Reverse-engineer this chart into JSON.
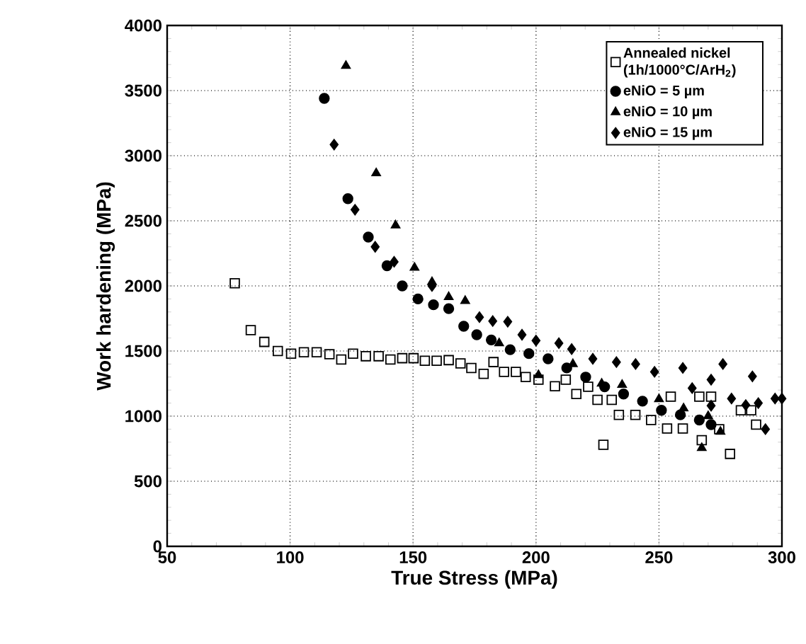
{
  "chart_data": {
    "type": "scatter",
    "xlabel": "True Stress (MPa)",
    "ylabel": "Work hardening (MPa)",
    "xlim": [
      50,
      300
    ],
    "xticks": [
      50,
      100,
      150,
      200,
      250,
      300
    ],
    "ylim": [
      0,
      4000
    ],
    "yticks": [
      0,
      500,
      1000,
      1500,
      2000,
      2500,
      3000,
      3500,
      4000
    ],
    "grid": true,
    "legend": "top right",
    "series": [
      {
        "name": "Annealed nickel (1h/1000°C/ArH$_{2}$)",
        "color": "#000000",
        "marker": "square",
        "x": [
          77.5,
          84,
          89.5,
          95,
          100.4,
          105.6,
          110.8,
          116,
          120.8,
          125.6,
          130.8,
          136,
          140.8,
          145.6,
          150.2,
          154.8,
          159.6,
          164.5,
          169.3,
          173.7,
          178.7,
          182.7,
          187,
          191.8,
          195.8,
          201,
          207.7,
          212.1,
          216.4,
          221.2,
          225,
          227.4,
          230.8,
          233.7,
          240.4,
          246.8,
          253.3,
          254.8,
          259.7,
          266.4,
          267.4,
          271.2,
          274.5,
          278.9,
          283.3,
          287.5,
          289.5
        ],
        "values": [
          2020,
          1660,
          1570,
          1500,
          1480,
          1490,
          1490,
          1475,
          1435,
          1480,
          1460,
          1460,
          1435,
          1445,
          1445,
          1425,
          1425,
          1430,
          1405,
          1370,
          1325,
          1415,
          1340,
          1340,
          1300,
          1280,
          1230,
          1280,
          1170,
          1225,
          1125,
          780,
          1125,
          1010,
          1010,
          970,
          905,
          1150,
          905,
          1150,
          815,
          1150,
          900,
          710,
          1045,
          1045,
          935
        ]
      },
      {
        "name": "eNiO = 5 µm",
        "color": "#000000",
        "marker": "circle",
        "x": [
          113.9,
          123.5,
          131.8,
          139.4,
          145.6,
          152,
          158.3,
          164.5,
          170.6,
          175.9,
          181.8,
          189.5,
          197.1,
          204.9,
          212.5,
          220.2,
          227.9,
          235.6,
          243.3,
          251,
          258.7,
          266.4,
          271.2
        ],
        "values": [
          3440,
          2670,
          2375,
          2155,
          2000,
          1900,
          1855,
          1825,
          1690,
          1625,
          1585,
          1510,
          1480,
          1440,
          1370,
          1300,
          1225,
          1170,
          1115,
          1045,
          1010,
          970,
          935
        ]
      },
      {
        "name": "eNiO = 10 µm",
        "color": "#000000",
        "marker": "triangle",
        "x": [
          122.7,
          135,
          142.9,
          150.6,
          157.7,
          164.5,
          171.2,
          185,
          201,
          215,
          226.7,
          235,
          250,
          260,
          267.4,
          270,
          275
        ],
        "values": [
          3690,
          2865,
          2465,
          2140,
          2030,
          1915,
          1885,
          1560,
          1315,
          1400,
          1250,
          1240,
          1130,
          1060,
          755,
          1000,
          880
        ]
      },
      {
        "name": "eNiO = 15 µm",
        "color": "#000000",
        "marker": "diamond",
        "x": [
          117.9,
          126.4,
          134.6,
          142.3,
          157.7,
          177,
          182.4,
          188.5,
          194.3,
          200,
          209.3,
          214.5,
          223.1,
          232.7,
          240.5,
          248.2,
          259.7,
          263.5,
          271.2,
          271.2,
          276,
          279.5,
          285.3,
          288,
          290.4,
          293.3,
          297.2,
          300
        ],
        "values": [
          3085,
          2585,
          2300,
          2185,
          2000,
          1760,
          1730,
          1725,
          1625,
          1580,
          1560,
          1515,
          1440,
          1415,
          1400,
          1340,
          1370,
          1215,
          1280,
          1080,
          1400,
          1135,
          1085,
          1305,
          1100,
          900,
          1135,
          1135
        ]
      }
    ]
  }
}
